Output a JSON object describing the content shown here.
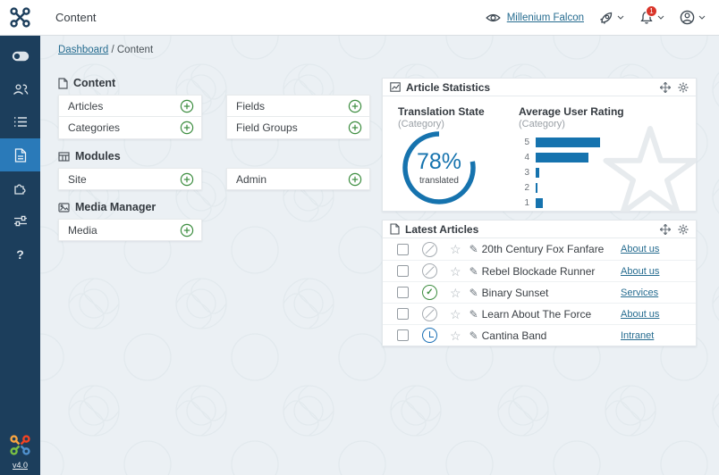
{
  "topbar": {
    "title": "Content",
    "site_preview": {
      "icon": "eye-icon",
      "label": "Millenium Falcon"
    },
    "notifications_badge": "1"
  },
  "breadcrumb": {
    "home": "Dashboard",
    "separator": "/",
    "current": "Content"
  },
  "sidebar": {
    "icons": [
      "toggle-icon",
      "users-icon",
      "menu-list-icon",
      "article-icon",
      "components-icon",
      "sliders-icon",
      "help-icon"
    ],
    "active_index": 3,
    "version": "v4.0"
  },
  "sections": [
    {
      "title": "Content",
      "icon": "file-icon",
      "columns": [
        [
          "Articles",
          "Categories"
        ],
        [
          "Fields",
          "Field Groups"
        ]
      ]
    },
    {
      "title": "Modules",
      "icon": "grid-icon",
      "columns": [
        [
          "Site"
        ],
        [
          "Admin"
        ]
      ]
    },
    {
      "title": "Media Manager",
      "icon": "image-icon",
      "columns": [
        [
          "Media"
        ]
      ]
    }
  ],
  "stats": {
    "title": "Article Statistics",
    "translation_label": "Translation State",
    "translation_sublabel": "(Category)",
    "rating_label": "Average User Rating",
    "rating_sublabel": "(Category)"
  },
  "chart_data": [
    {
      "type": "pie",
      "variant": "donut",
      "title": "Translation State (Category)",
      "value": 78,
      "label": "78%",
      "caption": "translated",
      "color": "#1673ae"
    },
    {
      "type": "bar",
      "orientation": "horizontal",
      "title": "Average User Rating (Category)",
      "categories": [
        "5",
        "4",
        "3",
        "2",
        "1"
      ],
      "values": [
        72,
        59,
        4,
        1.5,
        8
      ],
      "xlim": [
        0,
        120
      ],
      "color": "#1673ae",
      "grid": false,
      "legend": false
    }
  ],
  "latest": {
    "title": "Latest Articles",
    "rows": [
      {
        "title": "20th Century Fox Fanfare",
        "category": "About us",
        "status": "unpublished"
      },
      {
        "title": "Rebel Blockade Runner",
        "category": "About us",
        "status": "unpublished"
      },
      {
        "title": "Binary Sunset",
        "category": "Services",
        "status": "published"
      },
      {
        "title": "Learn About The Force",
        "category": "About us",
        "status": "unpublished"
      },
      {
        "title": "Cantina Band",
        "category": "Intranet",
        "status": "scheduled"
      }
    ]
  },
  "colors": {
    "sidebar_bg": "#1c3e5c",
    "active_item": "#2a7ab9",
    "chart_blue": "#1673ae",
    "green": "#3e8e41",
    "link": "#266c90",
    "badge_red": "#d9352a"
  }
}
